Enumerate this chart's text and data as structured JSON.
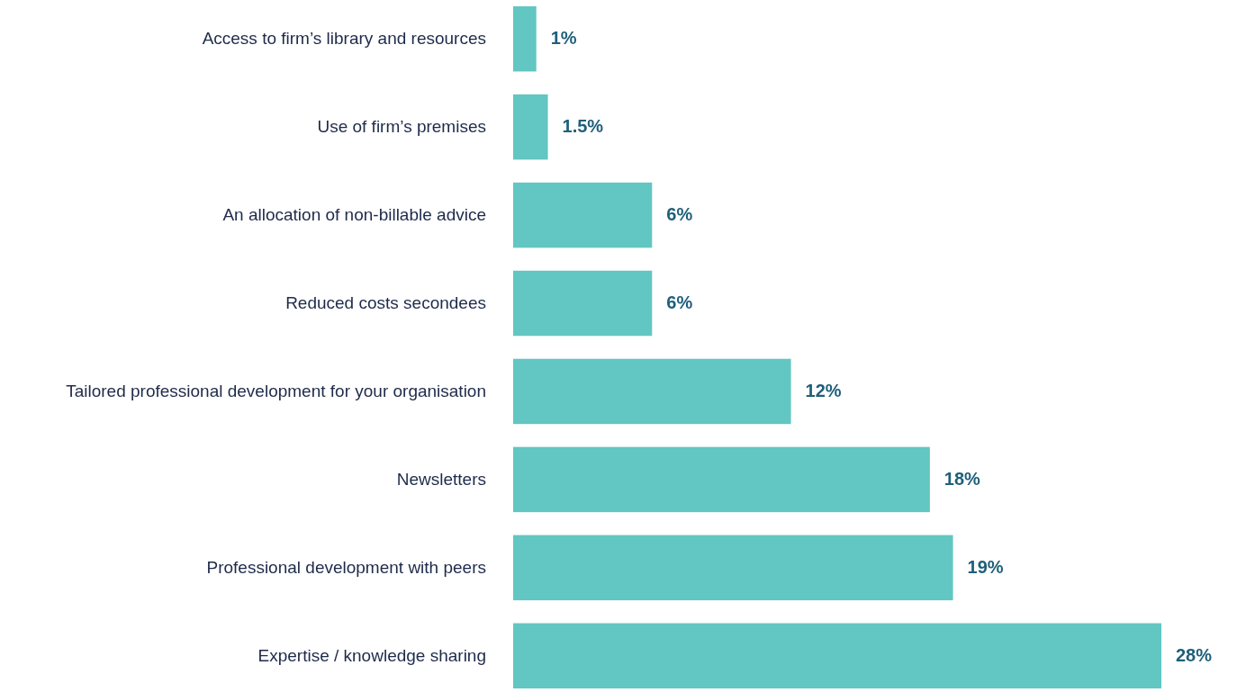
{
  "chart_data": {
    "type": "bar",
    "orientation": "horizontal",
    "categories": [
      "Access to firm’s library and resources",
      "Use of firm’s premises",
      "An allocation of non-billable advice",
      "Reduced costs secondees",
      "Tailored professional development for your organisation",
      "Newsletters",
      "Professional development with peers",
      "Expertise / knowledge sharing"
    ],
    "values": [
      1,
      1.5,
      6,
      6,
      12,
      18,
      19,
      28
    ],
    "value_labels": [
      "1%",
      "1.5%",
      "6%",
      "6%",
      "12%",
      "18%",
      "19%",
      "28%"
    ],
    "color": "#62c6c2"
  }
}
